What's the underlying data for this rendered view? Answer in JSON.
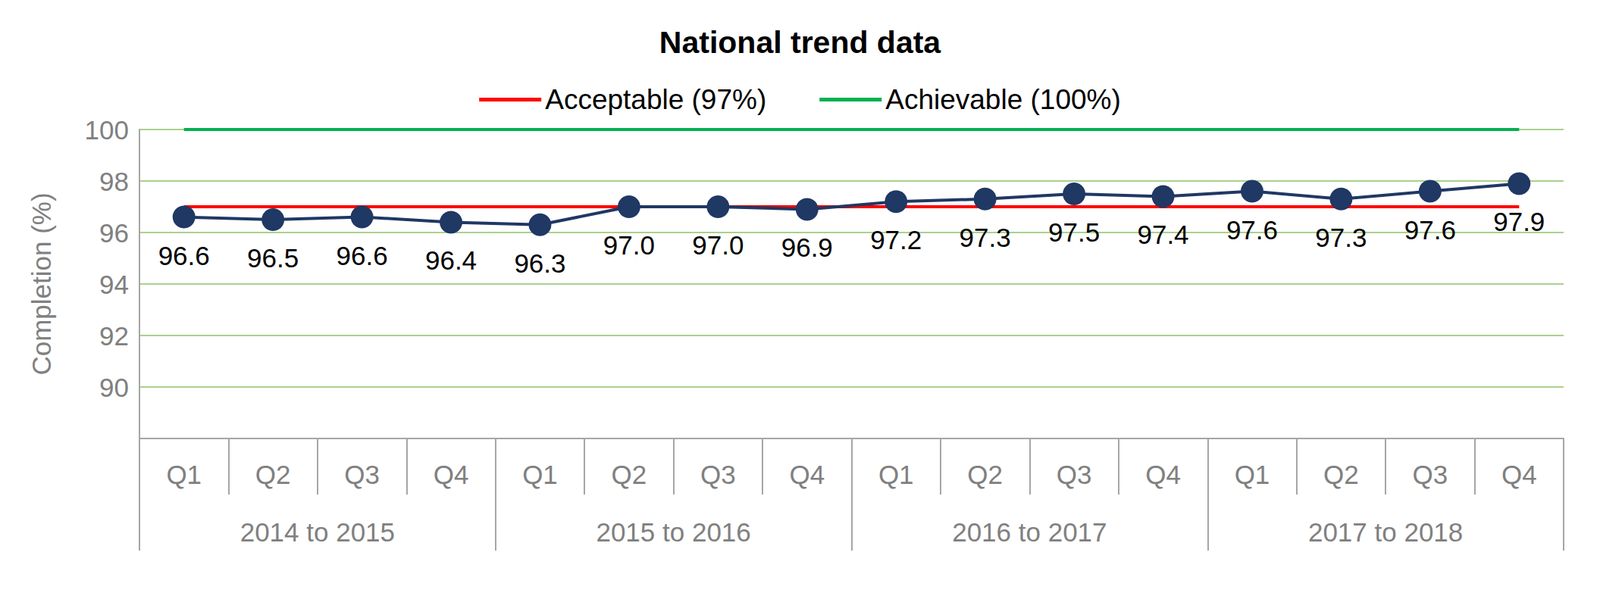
{
  "chart_data": {
    "type": "line",
    "title": "National trend data",
    "y_label": "Completion (%)",
    "categories": [
      "Q1",
      "Q2",
      "Q3",
      "Q4",
      "Q1",
      "Q2",
      "Q3",
      "Q4",
      "Q1",
      "Q2",
      "Q3",
      "Q4",
      "Q1",
      "Q2",
      "Q3",
      "Q4"
    ],
    "category_groups": [
      "2014 to 2015",
      "2015 to 2016",
      "2016 to 2017",
      "2017 to 2018"
    ],
    "series": [
      {
        "values": [
          96.6,
          96.5,
          96.6,
          96.4,
          96.3,
          97.0,
          97.0,
          96.9,
          97.2,
          97.3,
          97.5,
          97.4,
          97.6,
          97.3,
          97.6,
          97.9
        ],
        "value_labels": [
          "96.6",
          "96.5",
          "96.6",
          "96.4",
          "96.3",
          "97.0",
          "97.0",
          "96.9",
          "97.2",
          "97.3",
          "97.5",
          "97.4",
          "97.6",
          "97.3",
          "97.6",
          "97.9"
        ],
        "color": "#1f3864",
        "marker": "circle"
      },
      {
        "name": "Acceptable (97%)",
        "values": [
          97,
          97,
          97,
          97,
          97,
          97,
          97,
          97,
          97,
          97,
          97,
          97,
          97,
          97,
          97,
          97
        ],
        "color": "#ff0000",
        "marker": "none"
      },
      {
        "name": "Achievable (100%)",
        "values": [
          100,
          100,
          100,
          100,
          100,
          100,
          100,
          100,
          100,
          100,
          100,
          100,
          100,
          100,
          100,
          100
        ],
        "color": "#00b050",
        "marker": "none"
      }
    ],
    "ylim": [
      88,
      100
    ],
    "yticks": [
      90,
      92,
      94,
      96,
      98,
      100
    ],
    "grid": true,
    "legend": "top",
    "data_labels": true
  }
}
